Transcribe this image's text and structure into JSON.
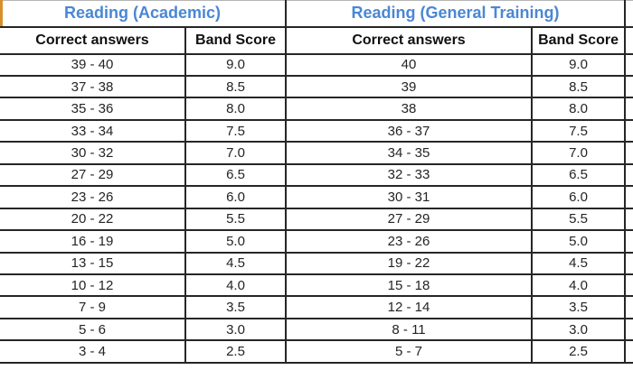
{
  "colors": {
    "title_blue": "#4a87d5",
    "border_dark": "#262626",
    "orange_edge_artifact": "#d78f2c",
    "background": "#ffffff"
  },
  "tables": [
    {
      "title": "Reading (Academic)",
      "columns": [
        "Correct answers",
        "Band Score"
      ],
      "rows": [
        [
          "39 - 40",
          "9.0"
        ],
        [
          "37 - 38",
          "8.5"
        ],
        [
          "35 - 36",
          "8.0"
        ],
        [
          "33 - 34",
          "7.5"
        ],
        [
          "30 - 32",
          "7.0"
        ],
        [
          "27 - 29",
          "6.5"
        ],
        [
          "23 - 26",
          "6.0"
        ],
        [
          "20 - 22",
          "5.5"
        ],
        [
          "16 - 19",
          "5.0"
        ],
        [
          "13 - 15",
          "4.5"
        ],
        [
          "10 - 12",
          "4.0"
        ],
        [
          "7 - 9",
          "3.5"
        ],
        [
          "5 - 6",
          "3.0"
        ],
        [
          "3 - 4",
          "2.5"
        ]
      ]
    },
    {
      "title": "Reading (General Training)",
      "columns": [
        "Correct answers",
        "Band Score"
      ],
      "rows": [
        [
          "40",
          "9.0"
        ],
        [
          "39",
          "8.5"
        ],
        [
          "38",
          "8.0"
        ],
        [
          "36 - 37",
          "7.5"
        ],
        [
          "34 - 35",
          "7.0"
        ],
        [
          "32 - 33",
          "6.5"
        ],
        [
          "30 - 31",
          "6.0"
        ],
        [
          "27 - 29",
          "5.5"
        ],
        [
          "23 - 26",
          "5.0"
        ],
        [
          "19 - 22",
          "4.5"
        ],
        [
          "15 - 18",
          "4.0"
        ],
        [
          "12 - 14",
          "3.5"
        ],
        [
          "8 - 11",
          "3.0"
        ],
        [
          "5 - 7",
          "2.5"
        ]
      ]
    }
  ]
}
